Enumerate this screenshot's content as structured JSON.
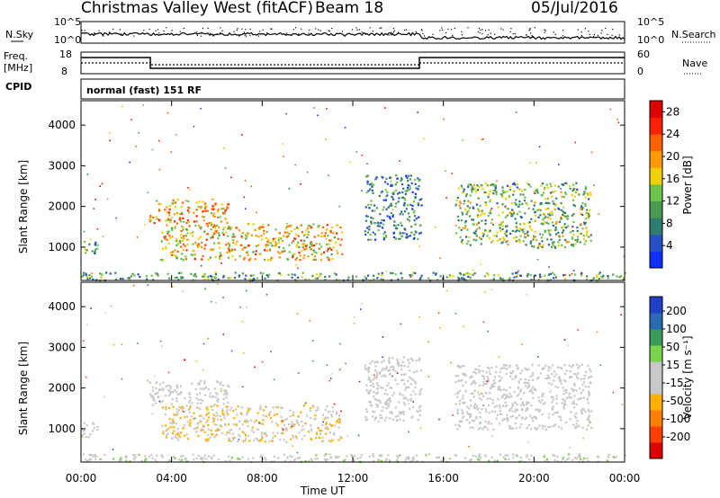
{
  "header": {
    "station": "Christmas Valley West (fitACF)",
    "beam": "Beam 18",
    "date": "05/Jul/2016"
  },
  "side_labels": {
    "nsky": "N.Sky",
    "nsearch": "N.Search",
    "freq": "Freq.",
    "freq_unit": "[MHz]",
    "nave": "Nave",
    "cpid": "CPID",
    "cpid_value": "normal (fast) 151 RF"
  },
  "noise_ticks": {
    "left_top": "10^5",
    "left_bottom": "10^0",
    "right_top": "10^5",
    "right_bottom": "10^0"
  },
  "freq_ticks": {
    "left_top": "18",
    "left_bottom": "8",
    "right_top": "60",
    "right_bottom": "0"
  },
  "colors": {
    "power": [
      "#1030ff",
      "#2a50c8",
      "#2f7d6e",
      "#4c9a52",
      "#6cc24a",
      "#f0d000",
      "#ff9a00",
      "#ff6000",
      "#ff2000",
      "#e00000"
    ],
    "velocity": [
      "#e00000",
      "#ff4000",
      "#ff8000",
      "#ffb000",
      "#c8c8c8",
      "#c8c8c8",
      "#7ad34a",
      "#3a9a5a",
      "#2a6ab0",
      "#2040c8"
    ]
  },
  "chart_data": [
    {
      "type": "heatmap",
      "panel": "power",
      "xlabel": "Time UT",
      "ylabel": "Slant Range [km]",
      "xlim": [
        "00:00",
        "24:00"
      ],
      "ylim": [
        180,
        4600
      ],
      "x_ticks": [
        "00:00",
        "04:00",
        "08:00",
        "12:00",
        "16:00",
        "20:00",
        "00:00"
      ],
      "y_ticks": [
        1000,
        2000,
        3000,
        4000
      ],
      "colorbar": {
        "label": "Power [dB]",
        "ticks": [
          4,
          8,
          12,
          16,
          20,
          24,
          28
        ],
        "range": [
          0,
          30
        ]
      },
      "regions": [
        {
          "t_start": 0.0,
          "t_end": 0.7,
          "r_min": 800,
          "r_max": 1200,
          "value": 10
        },
        {
          "t_start": 3.0,
          "t_end": 6.5,
          "r_min": 1600,
          "r_max": 2200,
          "value": 20
        },
        {
          "t_start": 3.5,
          "t_end": 11.5,
          "r_min": 700,
          "r_max": 1600,
          "value": 18
        },
        {
          "t_start": 12.5,
          "t_end": 15.0,
          "r_min": 1200,
          "r_max": 2800,
          "value": 8
        },
        {
          "t_start": 16.5,
          "t_end": 22.5,
          "r_min": 1000,
          "r_max": 2600,
          "value": 12
        },
        {
          "t_start": 0.0,
          "t_end": 24.0,
          "r_min": 200,
          "r_max": 400,
          "value": 10
        }
      ]
    },
    {
      "type": "heatmap",
      "panel": "velocity",
      "xlabel": "Time UT",
      "ylabel": "Slant Range [km]",
      "xlim": [
        "00:00",
        "24:00"
      ],
      "ylim": [
        180,
        4600
      ],
      "x_ticks": [
        "00:00",
        "04:00",
        "08:00",
        "12:00",
        "16:00",
        "20:00",
        "00:00"
      ],
      "y_ticks": [
        1000,
        2000,
        3000,
        4000
      ],
      "colorbar": {
        "label": "Velocity [m s⁻¹]",
        "ticks": [
          200,
          100,
          50,
          15,
          -15,
          -50,
          -100,
          -200
        ],
        "range": [
          -250,
          250
        ]
      },
      "regions": [
        {
          "t_start": 0.0,
          "t_end": 0.7,
          "r_min": 800,
          "r_max": 1200,
          "value": 0
        },
        {
          "t_start": 3.0,
          "t_end": 6.5,
          "r_min": 1600,
          "r_max": 2200,
          "value": 0
        },
        {
          "t_start": 3.5,
          "t_end": 11.5,
          "r_min": 700,
          "r_max": 1600,
          "value": -40
        },
        {
          "t_start": 12.5,
          "t_end": 15.0,
          "r_min": 1200,
          "r_max": 2800,
          "value": 0
        },
        {
          "t_start": 16.5,
          "t_end": 22.5,
          "r_min": 1000,
          "r_max": 2600,
          "value": 0
        },
        {
          "t_start": 0.0,
          "t_end": 24.0,
          "r_min": 200,
          "r_max": 400,
          "value": 30
        }
      ]
    }
  ]
}
